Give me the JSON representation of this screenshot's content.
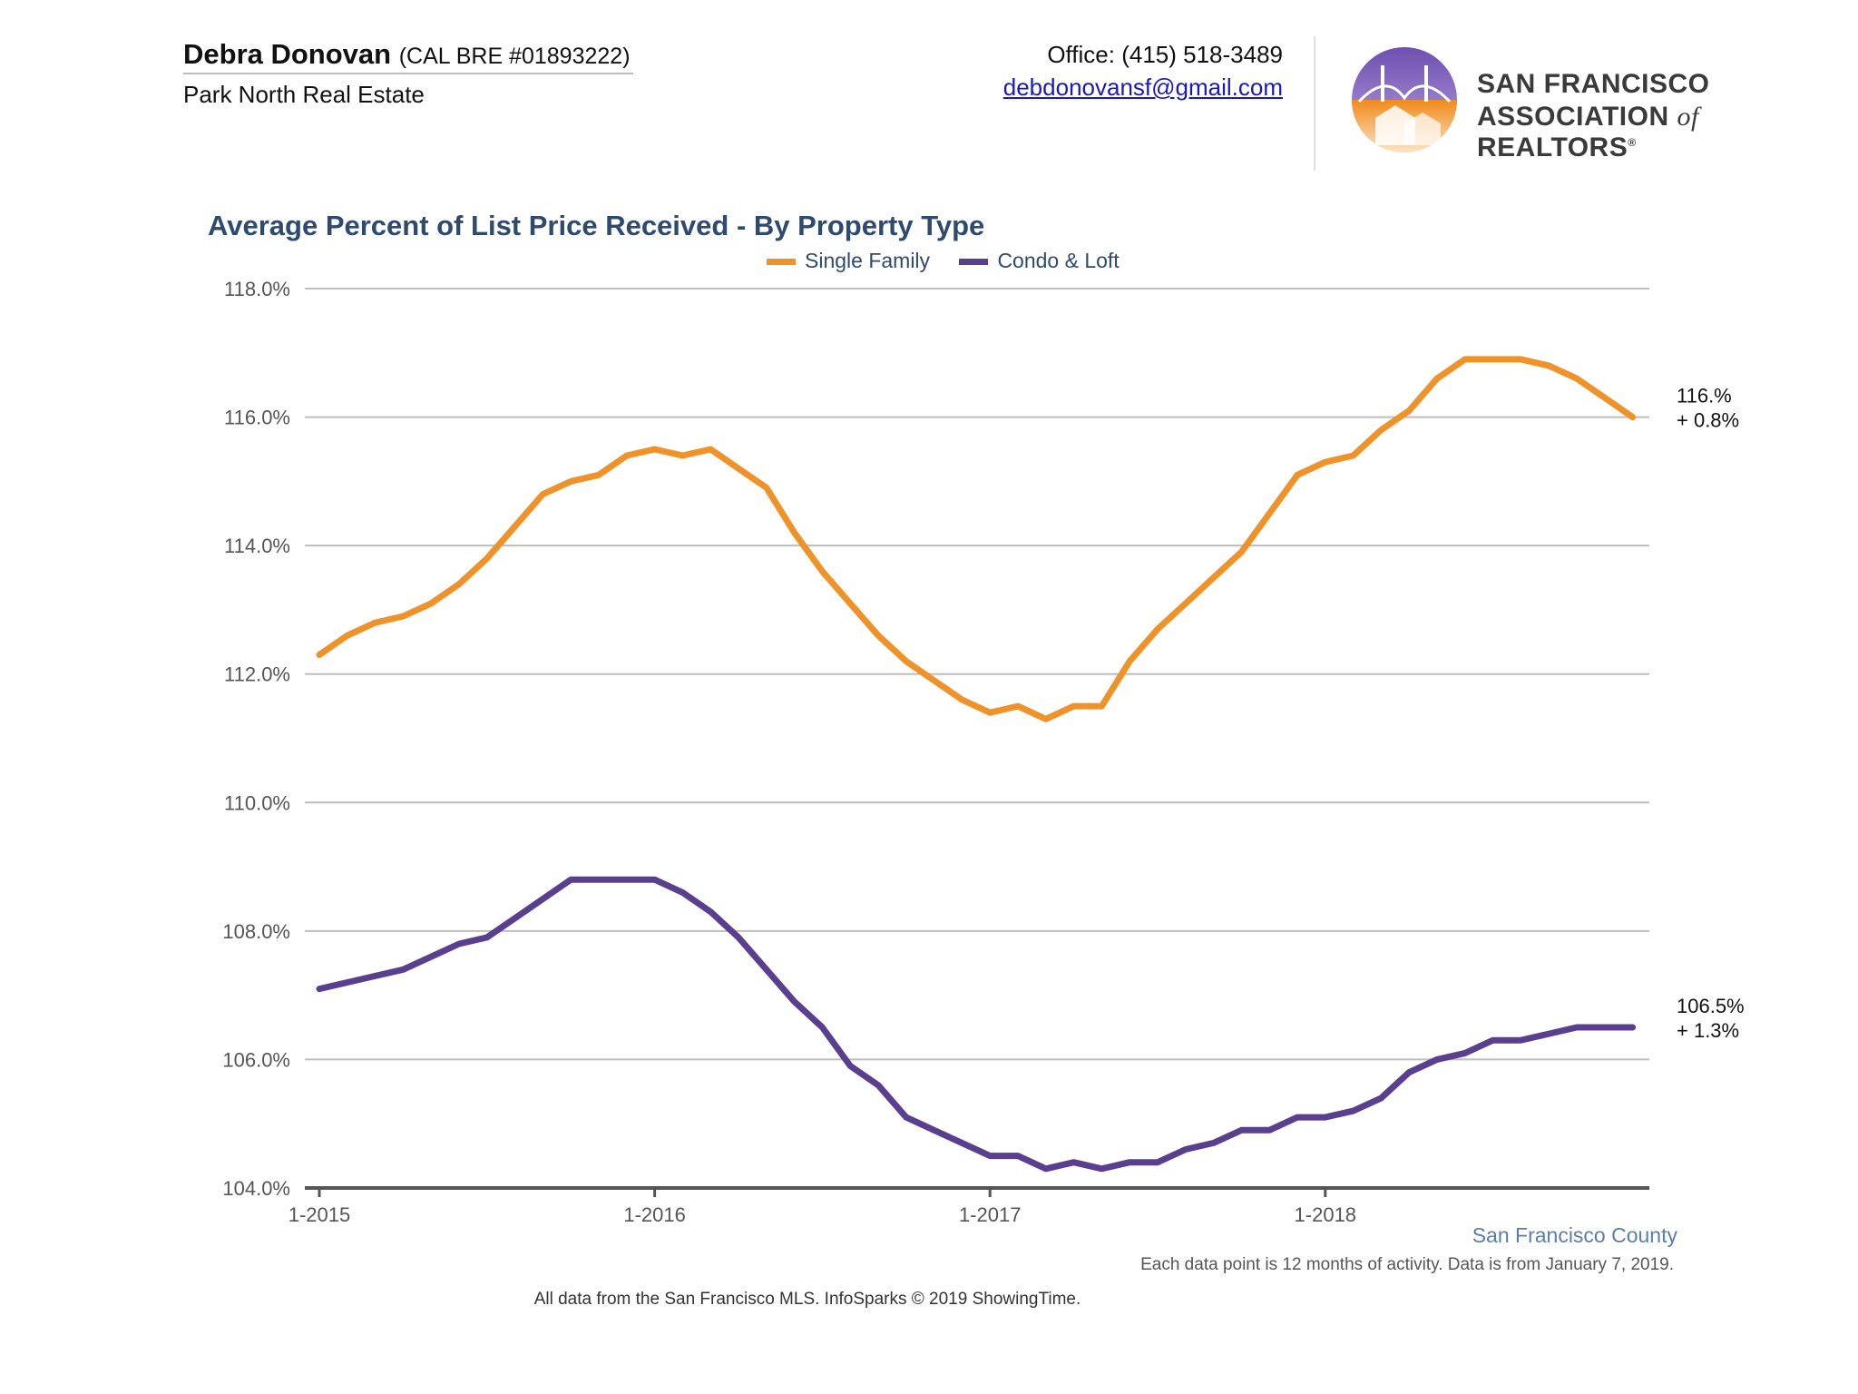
{
  "header": {
    "agent_name": "Debra Donovan",
    "license": "(CAL BRE #01893222)",
    "company": "Park North Real Estate",
    "office_phone": "Office: (415) 518-3489",
    "email": "debdonovansf@gmail.com",
    "association_line1": "SAN FRANCISCO",
    "association_line2_a": "ASSOCIATION",
    "association_line2_of": "of",
    "association_line2_b": "REALTORS",
    "association_mark": "®"
  },
  "colors": {
    "single_family": "#f0922a",
    "condo_loft": "#5b3f8f",
    "title": "#2e4a6e",
    "grid": "#bdbdbd"
  },
  "chart_data": {
    "type": "line",
    "title": "Average Percent of List Price Received - By Property Type",
    "legend_position": "top",
    "grid": true,
    "ylim": [
      104,
      118
    ],
    "yticks": [
      "104.0%",
      "106.0%",
      "108.0%",
      "110.0%",
      "112.0%",
      "114.0%",
      "116.0%",
      "118.0%"
    ],
    "ytick_values": [
      104,
      106,
      108,
      110,
      112,
      114,
      116,
      118
    ],
    "xticks": [
      "1-2015",
      "1-2016",
      "1-2017",
      "1-2018"
    ],
    "x_start": "1-2015",
    "x_end": "12-2018",
    "series": [
      {
        "name": "Single Family",
        "values": [
          112.3,
          112.6,
          112.8,
          112.9,
          113.1,
          113.4,
          113.8,
          114.3,
          114.8,
          115.0,
          115.1,
          115.4,
          115.5,
          115.4,
          115.5,
          115.2,
          114.9,
          114.2,
          113.6,
          113.1,
          112.6,
          112.2,
          111.9,
          111.6,
          111.4,
          111.5,
          111.3,
          111.5,
          111.5,
          112.2,
          112.7,
          113.1,
          113.5,
          113.9,
          114.5,
          115.1,
          115.3,
          115.4,
          115.8,
          116.1,
          116.6,
          116.9,
          116.9,
          116.9,
          116.8,
          116.6,
          116.3,
          116.0
        ],
        "end_label": "116.%",
        "end_change": "+ 0.8%"
      },
      {
        "name": "Condo & Loft",
        "values": [
          107.1,
          107.2,
          107.3,
          107.4,
          107.6,
          107.8,
          107.9,
          108.2,
          108.5,
          108.8,
          108.8,
          108.8,
          108.8,
          108.6,
          108.3,
          107.9,
          107.4,
          106.9,
          106.5,
          105.9,
          105.6,
          105.1,
          104.9,
          104.7,
          104.5,
          104.5,
          104.3,
          104.4,
          104.3,
          104.4,
          104.4,
          104.6,
          104.7,
          104.9,
          104.9,
          105.1,
          105.1,
          105.2,
          105.4,
          105.8,
          106.0,
          106.1,
          106.3,
          106.3,
          106.4,
          106.5,
          106.5,
          106.5
        ],
        "end_label": "106.5%",
        "end_change": "+ 1.3%"
      }
    ]
  },
  "footer": {
    "county": "San Francisco County",
    "note": "Each data point is 12 months of activity. Data is from January 7, 2019.",
    "source": "All data from the San Francisco MLS. InfoSparks © 2019 ShowingTime."
  }
}
